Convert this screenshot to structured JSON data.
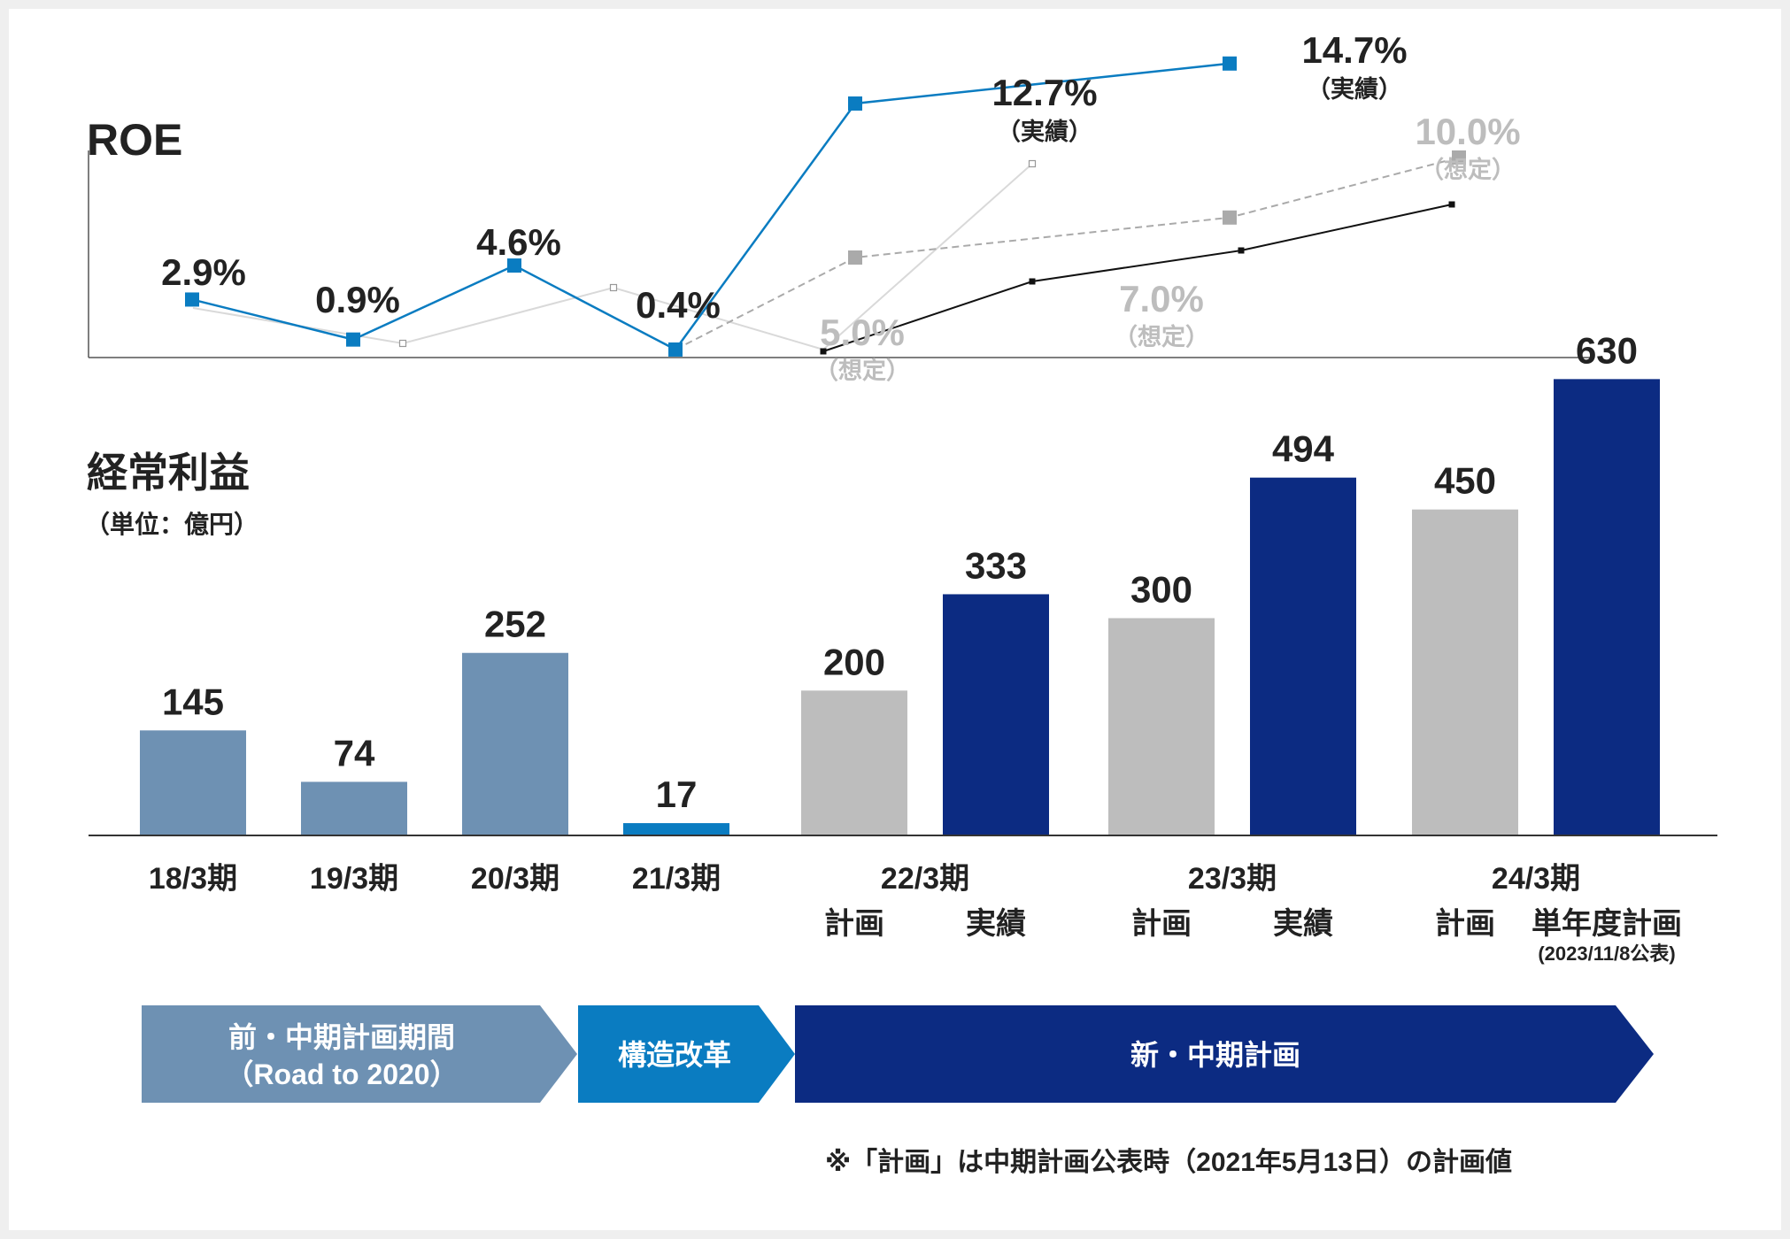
{
  "chart_data": [
    {
      "type": "line",
      "title": "ROE",
      "unit": "%",
      "series": [
        {
          "role": "actual",
          "color": "#0a7cc1",
          "points": [
            {
              "x": "18/3期",
              "y": 2.9,
              "label": "2.9%"
            },
            {
              "x": "19/3期",
              "y": 0.9,
              "label": "0.9%"
            },
            {
              "x": "20/3期",
              "y": 4.6,
              "label": "4.6%"
            },
            {
              "x": "21/3期",
              "y": 0.4,
              "label": "0.4%"
            },
            {
              "x": "22/3期",
              "y": 12.7,
              "label": "12.7%",
              "sublabel": "（実績）"
            },
            {
              "x": "23/3期",
              "y": 14.7,
              "label": "14.7%",
              "sublabel": "（実績）"
            }
          ]
        },
        {
          "role": "assumed",
          "color": "#aaaaaa",
          "points": [
            {
              "x": "21/3期",
              "y": 0.4
            },
            {
              "x": "22/3期",
              "y": 5.0,
              "label": "5.0%",
              "sublabel": "（想定）"
            },
            {
              "x": "23/3期",
              "y": 7.0,
              "label": "7.0%",
              "sublabel": "（想定）"
            },
            {
              "x": "24/3期",
              "y": 10.0,
              "label": "10.0%",
              "sublabel": "（想定）"
            }
          ]
        }
      ]
    },
    {
      "type": "bar",
      "title": "経常利益",
      "unit_label": "（単位：億円）",
      "categories": [
        "18/3期",
        "19/3期",
        "20/3期",
        "21/3期",
        "22/3期",
        "23/3期",
        "24/3期"
      ],
      "sub_labels": {
        "22/3期": [
          "計画",
          "実績"
        ],
        "23/3期": [
          "計画",
          "実績"
        ],
        "24/3期": [
          "計画",
          "単年度計画"
        ]
      },
      "sub_note": "(2023/11/8公表)",
      "bars": [
        {
          "category": "18/3期",
          "value": 145,
          "kind": "previous",
          "color": "#6e91b3"
        },
        {
          "category": "19/3期",
          "value": 74,
          "kind": "previous",
          "color": "#6e91b3"
        },
        {
          "category": "20/3期",
          "value": 252,
          "kind": "previous",
          "color": "#6e91b3"
        },
        {
          "category": "21/3期",
          "value": 17,
          "kind": "reform",
          "color": "#0a7cc1"
        },
        {
          "category": "22/3期",
          "sub": "計画",
          "value": 200,
          "kind": "plan",
          "color": "#bdbdbd"
        },
        {
          "category": "22/3期",
          "sub": "実績",
          "value": 333,
          "kind": "actual",
          "color": "#0c2b82"
        },
        {
          "category": "23/3期",
          "sub": "計画",
          "value": 300,
          "kind": "plan",
          "color": "#bdbdbd"
        },
        {
          "category": "23/3期",
          "sub": "実績",
          "value": 494,
          "kind": "actual",
          "color": "#0c2b82"
        },
        {
          "category": "24/3期",
          "sub": "計画",
          "value": 450,
          "kind": "plan",
          "color": "#bdbdbd"
        },
        {
          "category": "24/3期",
          "sub": "単年度計画",
          "value": 630,
          "kind": "actual",
          "color": "#0c2b82"
        }
      ],
      "ylim": [
        0,
        650
      ]
    }
  ],
  "banners": [
    {
      "line1": "前・中期計画期間",
      "line2": "（Road to 2020）",
      "color": "#6e91b3"
    },
    {
      "line1": "構造改革",
      "line2": "",
      "color": "#0a7cc1"
    },
    {
      "line1": "新・中期計画",
      "line2": "",
      "color": "#0c2b82"
    }
  ],
  "footnote": "※「計画」は中期計画公表時（2021年5月13日）の計画値"
}
